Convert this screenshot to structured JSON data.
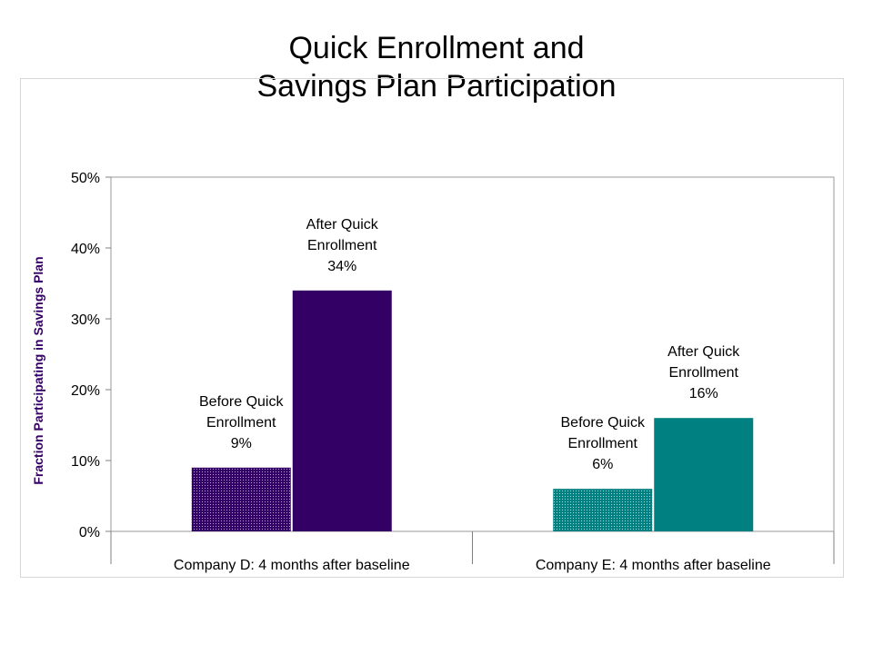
{
  "slide": {
    "title_line1": "Quick Enrollment and",
    "title_line2": "Savings Plan Participation"
  },
  "chart_data": {
    "type": "bar",
    "title": "Quick Enrollment and Savings Plan Participation",
    "xlabel": "",
    "ylabel": "Fraction Participating in Savings Plan",
    "ylim": [
      0,
      50
    ],
    "yticks": [
      0,
      10,
      20,
      30,
      40,
      50
    ],
    "ytick_format": "%",
    "grid": false,
    "legend": "none",
    "groups": [
      {
        "category": "Company D: 4 months after baseline",
        "bars": [
          {
            "label_line1": "Before Quick",
            "label_line2": "Enrollment",
            "value": 9,
            "value_text": "9%",
            "color": "#330066",
            "pattern": "dotted"
          },
          {
            "label_line1": "After Quick",
            "label_line2": "Enrollment",
            "value": 34,
            "value_text": "34%",
            "color": "#330066",
            "pattern": "solid"
          }
        ]
      },
      {
        "category": "Company E: 4 months after baseline",
        "bars": [
          {
            "label_line1": "Before Quick",
            "label_line2": "Enrollment",
            "value": 6,
            "value_text": "6%",
            "color": "#008080",
            "pattern": "dotted"
          },
          {
            "label_line1": "After Quick",
            "label_line2": "Enrollment",
            "value": 16,
            "value_text": "16%",
            "color": "#008080",
            "pattern": "solid"
          }
        ]
      }
    ]
  }
}
